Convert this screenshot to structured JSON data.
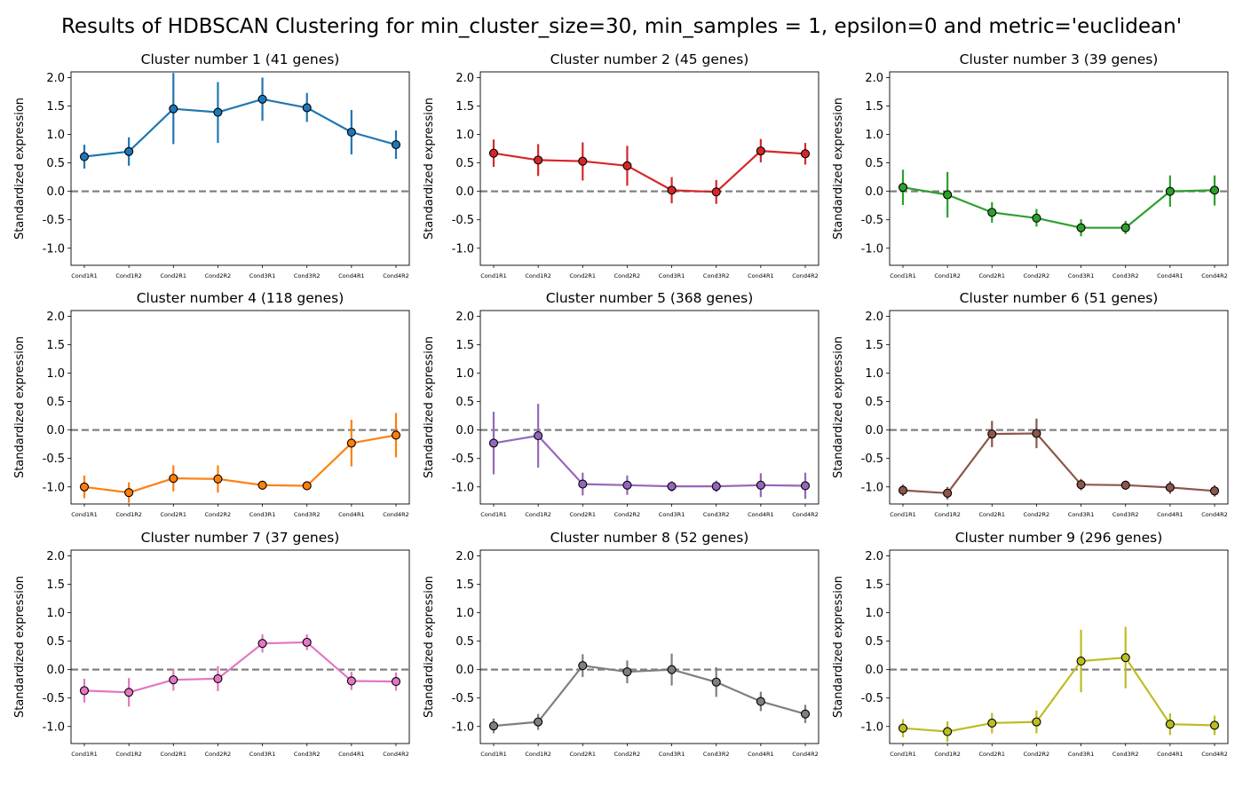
{
  "figure": {
    "title": "Results of HDBSCAN Clustering for min_cluster_size=30, min_samples = 1, epsilon=0 and metric='euclidean'"
  },
  "chart_data": [
    {
      "type": "line",
      "title": "Cluster number 1 (41 genes)",
      "ylabel": "Standardized expression",
      "ylim": [
        -1.3,
        2.1
      ],
      "yticks": [
        -1.0,
        -0.5,
        0.0,
        0.5,
        1.0,
        1.5,
        2.0
      ],
      "reference_line": 0,
      "color": "#1f77b4",
      "categories": [
        "Cond1R1",
        "Cond1R2",
        "Cond2R1",
        "Cond2R2",
        "Cond3R1",
        "Cond3R2",
        "Cond4R1",
        "Cond4R2"
      ],
      "values": [
        0.61,
        0.7,
        1.45,
        1.39,
        1.62,
        1.47,
        1.04,
        0.82
      ],
      "err_low": [
        0.4,
        0.45,
        0.83,
        0.85,
        1.24,
        1.22,
        0.65,
        0.57
      ],
      "err_high": [
        0.82,
        0.95,
        2.08,
        1.92,
        2.0,
        1.73,
        1.43,
        1.07
      ]
    },
    {
      "type": "line",
      "title": "Cluster number 2 (45 genes)",
      "ylabel": "Standardized expression",
      "ylim": [
        -1.3,
        2.1
      ],
      "yticks": [
        -1.0,
        -0.5,
        0.0,
        0.5,
        1.0,
        1.5,
        2.0
      ],
      "reference_line": 0,
      "color": "#d62728",
      "categories": [
        "Cond1R1",
        "Cond1R2",
        "Cond2R1",
        "Cond2R2",
        "Cond3R1",
        "Cond3R2",
        "Cond4R1",
        "Cond4R2"
      ],
      "values": [
        0.67,
        0.55,
        0.53,
        0.45,
        0.02,
        -0.01,
        0.71,
        0.66
      ],
      "err_low": [
        0.43,
        0.27,
        0.19,
        0.1,
        -0.21,
        -0.22,
        0.51,
        0.47
      ],
      "err_high": [
        0.91,
        0.83,
        0.86,
        0.8,
        0.25,
        0.2,
        0.92,
        0.85
      ]
    },
    {
      "type": "line",
      "title": "Cluster number 3 (39 genes)",
      "ylabel": "Standardized expression",
      "ylim": [
        -1.3,
        2.1
      ],
      "yticks": [
        -1.0,
        -0.5,
        0.0,
        0.5,
        1.0,
        1.5,
        2.0
      ],
      "reference_line": 0,
      "color": "#2ca02c",
      "categories": [
        "Cond1R1",
        "Cond1R2",
        "Cond2R1",
        "Cond2R2",
        "Cond3R1",
        "Cond3R2",
        "Cond4R1",
        "Cond4R2"
      ],
      "values": [
        0.07,
        -0.06,
        -0.37,
        -0.47,
        -0.64,
        -0.64,
        0.0,
        0.02
      ],
      "err_low": [
        -0.24,
        -0.46,
        -0.55,
        -0.62,
        -0.79,
        -0.75,
        -0.27,
        -0.25
      ],
      "err_high": [
        0.38,
        0.34,
        -0.19,
        -0.31,
        -0.49,
        -0.52,
        0.28,
        0.28
      ]
    },
    {
      "type": "line",
      "title": "Cluster number 4 (118 genes)",
      "ylabel": "Standardized expression",
      "ylim": [
        -1.3,
        2.1
      ],
      "yticks": [
        -1.0,
        -0.5,
        0.0,
        0.5,
        1.0,
        1.5,
        2.0
      ],
      "reference_line": 0,
      "color": "#ff7f0e",
      "categories": [
        "Cond1R1",
        "Cond1R2",
        "Cond2R1",
        "Cond2R2",
        "Cond3R1",
        "Cond3R2",
        "Cond4R1",
        "Cond4R2"
      ],
      "values": [
        -1.0,
        -1.1,
        -0.85,
        -0.86,
        -0.97,
        -0.98,
        -0.23,
        -0.09
      ],
      "err_low": [
        -1.2,
        -1.28,
        -1.08,
        -1.1,
        -1.05,
        -1.06,
        -0.64,
        -0.48
      ],
      "err_high": [
        -0.8,
        -0.92,
        -0.62,
        -0.62,
        -0.89,
        -0.9,
        0.18,
        0.3
      ]
    },
    {
      "type": "line",
      "title": "Cluster number 5 (368 genes)",
      "ylabel": "Standardized expression",
      "ylim": [
        -1.3,
        2.1
      ],
      "yticks": [
        -1.0,
        -0.5,
        0.0,
        0.5,
        1.0,
        1.5,
        2.0
      ],
      "reference_line": 0,
      "color": "#9467bd",
      "categories": [
        "Cond1R1",
        "Cond1R2",
        "Cond2R1",
        "Cond2R2",
        "Cond3R1",
        "Cond3R2",
        "Cond4R1",
        "Cond4R2"
      ],
      "values": [
        -0.23,
        -0.1,
        -0.95,
        -0.97,
        -0.99,
        -0.99,
        -0.97,
        -0.98
      ],
      "err_low": [
        -0.78,
        -0.66,
        -1.15,
        -1.14,
        -1.08,
        -1.09,
        -1.18,
        -1.21
      ],
      "err_high": [
        0.32,
        0.46,
        -0.75,
        -0.8,
        -0.9,
        -0.89,
        -0.76,
        -0.75
      ]
    },
    {
      "type": "line",
      "title": "Cluster number 6 (51 genes)",
      "ylabel": "Standardized expression",
      "ylim": [
        -1.3,
        2.1
      ],
      "yticks": [
        -1.0,
        -0.5,
        0.0,
        0.5,
        1.0,
        1.5,
        2.0
      ],
      "reference_line": 0,
      "color": "#8c564b",
      "categories": [
        "Cond1R1",
        "Cond1R2",
        "Cond2R1",
        "Cond2R2",
        "Cond3R1",
        "Cond3R2",
        "Cond4R1",
        "Cond4R2"
      ],
      "values": [
        -1.06,
        -1.11,
        -0.07,
        -0.06,
        -0.96,
        -0.97,
        -1.01,
        -1.07
      ],
      "err_low": [
        -1.16,
        -1.22,
        -0.3,
        -0.32,
        -1.06,
        -1.05,
        -1.12,
        -1.17
      ],
      "err_high": [
        -0.96,
        -1.0,
        0.16,
        0.2,
        -0.86,
        -0.89,
        -0.9,
        -0.97
      ]
    },
    {
      "type": "line",
      "title": "Cluster number 7 (37 genes)",
      "ylabel": "Standardized expression",
      "ylim": [
        -1.3,
        2.1
      ],
      "yticks": [
        -1.0,
        -0.5,
        0.0,
        0.5,
        1.0,
        1.5,
        2.0
      ],
      "reference_line": 0,
      "color": "#e377c2",
      "categories": [
        "Cond1R1",
        "Cond1R2",
        "Cond2R1",
        "Cond2R2",
        "Cond3R1",
        "Cond3R2",
        "Cond4R1",
        "Cond4R2"
      ],
      "values": [
        -0.37,
        -0.4,
        -0.18,
        -0.16,
        0.46,
        0.48,
        -0.2,
        -0.21
      ],
      "err_low": [
        -0.58,
        -0.65,
        -0.37,
        -0.38,
        0.3,
        0.34,
        -0.36,
        -0.37
      ],
      "err_high": [
        -0.16,
        -0.15,
        0.01,
        0.06,
        0.62,
        0.62,
        -0.04,
        -0.05
      ]
    },
    {
      "type": "line",
      "title": "Cluster number 8 (52 genes)",
      "ylabel": "Standardized expression",
      "ylim": [
        -1.3,
        2.1
      ],
      "yticks": [
        -1.0,
        -0.5,
        0.0,
        0.5,
        1.0,
        1.5,
        2.0
      ],
      "reference_line": 0,
      "color": "#7f7f7f",
      "categories": [
        "Cond1R1",
        "Cond1R2",
        "Cond2R1",
        "Cond2R2",
        "Cond3R1",
        "Cond3R2",
        "Cond4R1",
        "Cond4R2"
      ],
      "values": [
        -0.99,
        -0.92,
        0.07,
        -0.04,
        0.0,
        -0.22,
        -0.56,
        -0.78
      ],
      "err_low": [
        -1.12,
        -1.06,
        -0.13,
        -0.24,
        -0.28,
        -0.48,
        -0.73,
        -0.94
      ],
      "err_high": [
        -0.86,
        -0.78,
        0.27,
        0.16,
        0.28,
        0.04,
        -0.39,
        -0.62
      ]
    },
    {
      "type": "line",
      "title": "Cluster number 9 (296 genes)",
      "ylabel": "Standardized expression",
      "ylim": [
        -1.3,
        2.1
      ],
      "yticks": [
        -1.0,
        -0.5,
        0.0,
        0.5,
        1.0,
        1.5,
        2.0
      ],
      "reference_line": 0,
      "color": "#bcbd22",
      "categories": [
        "Cond1R1",
        "Cond1R2",
        "Cond2R1",
        "Cond2R2",
        "Cond3R1",
        "Cond3R2",
        "Cond4R1",
        "Cond4R2"
      ],
      "values": [
        -1.03,
        -1.09,
        -0.94,
        -0.92,
        0.15,
        0.21,
        -0.96,
        -0.98
      ],
      "err_low": [
        -1.19,
        -1.27,
        -1.12,
        -1.12,
        -0.4,
        -0.33,
        -1.15,
        -1.15
      ],
      "err_high": [
        -0.87,
        -0.91,
        -0.76,
        -0.72,
        0.7,
        0.75,
        -0.77,
        -0.81
      ]
    }
  ]
}
